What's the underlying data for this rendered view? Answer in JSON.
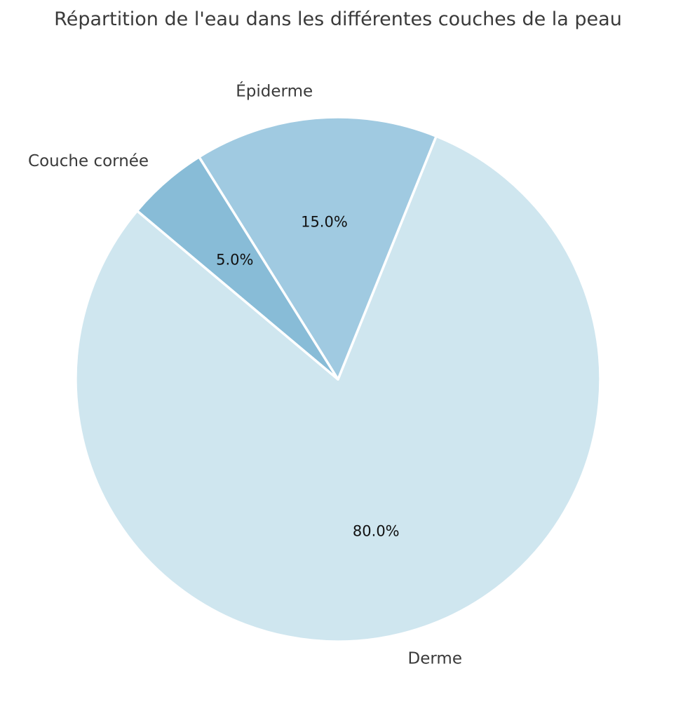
{
  "chart_data": {
    "type": "pie",
    "title": "Répartition de l'eau dans les différentes couches de la peau",
    "categories": [
      "Derme",
      "Épiderme",
      "Couche cornée"
    ],
    "values": [
      80.0,
      15.0,
      5.0
    ],
    "value_labels": [
      "80.0%",
      "15.0%",
      "5.0%"
    ],
    "colors": [
      "#cfe6ef",
      "#a0cae1",
      "#88bcd7"
    ],
    "edge_color": "#ffffff",
    "start_angle_deg": 140,
    "direction": "counterclockwise"
  }
}
